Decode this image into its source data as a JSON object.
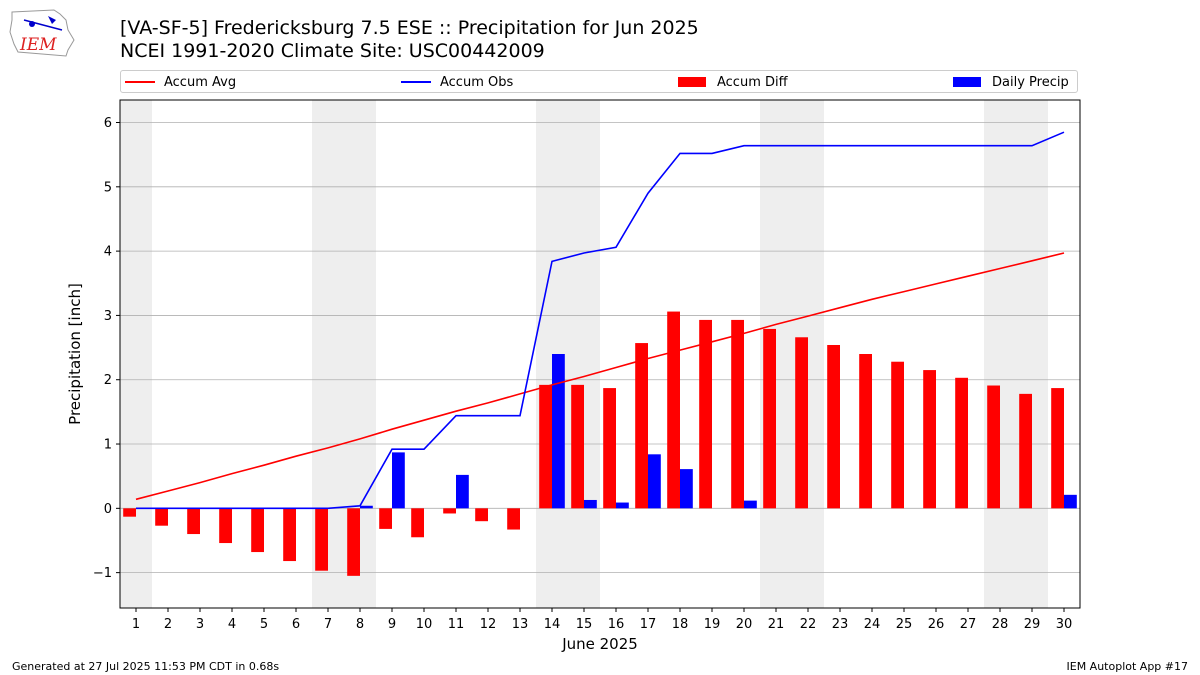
{
  "header": {
    "title_line1": "[VA-SF-5] Fredericksburg 7.5 ESE :: Precipitation for Jun 2025",
    "title_line2": "NCEI 1991-2020 Climate Site: USC00442009",
    "logo_text": "IEM"
  },
  "footer": {
    "left": "Generated at 27 Jul 2025 11:53 PM CDT in 0.68s",
    "right": "IEM Autoplot App #17"
  },
  "colors": {
    "avg": "#ff0000",
    "obs": "#0000ff",
    "diff": "#ff0000",
    "daily": "#0000ff",
    "weekend": "#eeeeee",
    "grid": "#b0b0b0"
  },
  "chart_data": {
    "type": "bar",
    "xlabel": "June 2025",
    "ylabel": "Precipitation [inch]",
    "ylim": [
      -1.55,
      6.35
    ],
    "yticks": [
      -1,
      0,
      1,
      2,
      3,
      4,
      5,
      6
    ],
    "ytick_labels": [
      "−1",
      "0",
      "1",
      "2",
      "3",
      "4",
      "5",
      "6"
    ],
    "grid": true,
    "legend_placement": "top",
    "categories": [
      "1",
      "2",
      "3",
      "4",
      "5",
      "6",
      "7",
      "8",
      "9",
      "10",
      "11",
      "12",
      "13",
      "14",
      "15",
      "16",
      "17",
      "18",
      "19",
      "20",
      "21",
      "22",
      "23",
      "24",
      "25",
      "26",
      "27",
      "28",
      "29",
      "30"
    ],
    "weekend_days": [
      1,
      7,
      8,
      14,
      15,
      21,
      22,
      28,
      29
    ],
    "series": [
      {
        "name": "Accum Avg",
        "kind": "line",
        "values": [
          0.14,
          0.27,
          0.4,
          0.54,
          0.67,
          0.81,
          0.94,
          1.08,
          1.23,
          1.37,
          1.51,
          1.64,
          1.78,
          1.92,
          2.05,
          2.19,
          2.33,
          2.46,
          2.59,
          2.72,
          2.86,
          2.99,
          3.12,
          3.25,
          3.37,
          3.49,
          3.61,
          3.73,
          3.85,
          3.97
        ]
      },
      {
        "name": "Accum Obs",
        "kind": "line",
        "values": [
          0.0,
          0.0,
          0.0,
          0.0,
          0.0,
          0.0,
          0.0,
          0.04,
          0.92,
          0.92,
          1.44,
          1.44,
          1.44,
          3.84,
          3.97,
          4.06,
          4.9,
          5.52,
          5.52,
          5.64,
          5.64,
          5.64,
          5.64,
          5.64,
          5.64,
          5.64,
          5.64,
          5.64,
          5.64,
          5.85
        ]
      },
      {
        "name": "Accum Diff",
        "kind": "bar",
        "values": [
          -0.13,
          -0.27,
          -0.4,
          -0.54,
          -0.68,
          -0.82,
          -0.97,
          -1.05,
          -0.32,
          -0.45,
          -0.08,
          -0.2,
          -0.33,
          1.92,
          1.92,
          1.87,
          2.57,
          3.06,
          2.93,
          2.93,
          2.79,
          2.66,
          2.54,
          2.4,
          2.28,
          2.15,
          2.03,
          1.91,
          1.78,
          1.87
        ]
      },
      {
        "name": "Daily Precip",
        "kind": "bar",
        "values": [
          0.0,
          0.0,
          0.0,
          0.0,
          0.0,
          0.0,
          0.0,
          0.04,
          0.87,
          0.0,
          0.52,
          0.0,
          0.0,
          2.4,
          0.13,
          0.09,
          0.84,
          0.61,
          0.0,
          0.12,
          0.0,
          0.0,
          0.0,
          0.0,
          0.0,
          0.0,
          0.0,
          0.0,
          0.0,
          0.21
        ]
      }
    ]
  }
}
